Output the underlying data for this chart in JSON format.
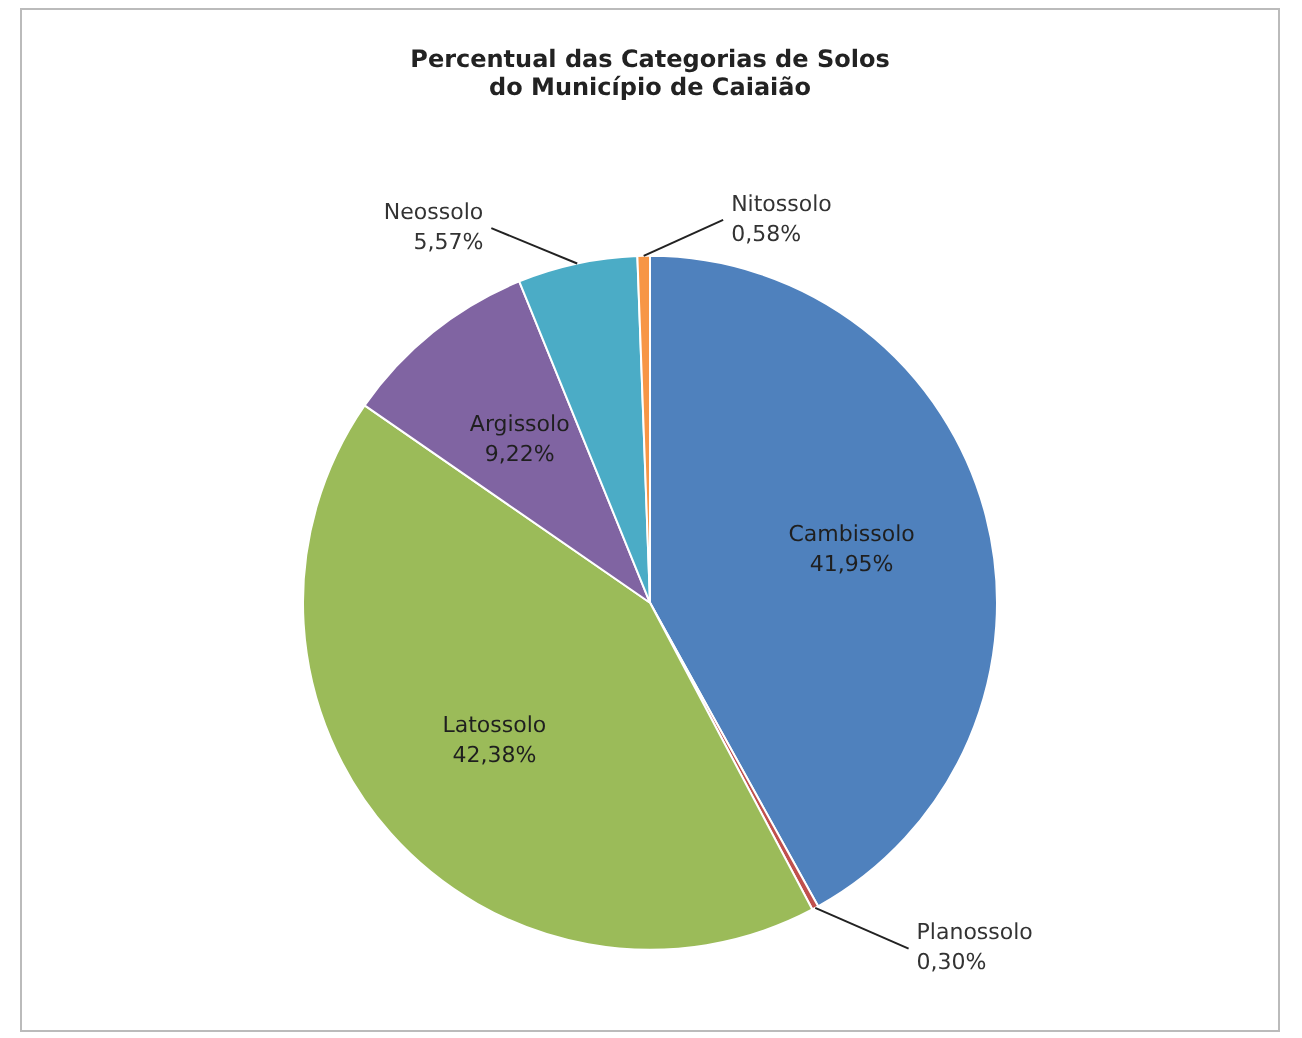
{
  "chart_data": {
    "type": "pie",
    "title": "Percentual das Categorias de Solos\ndo Município de Caiaião",
    "categories": [
      "Cambissolo",
      "Planossolo",
      "Latossolo",
      "Argissolo",
      "Neossolo",
      "Nitossolo"
    ],
    "values": [
      41.95,
      0.3,
      42.38,
      9.22,
      5.57,
      0.58
    ],
    "value_labels": [
      "41,95%",
      "0,30%",
      "42,38%",
      "9,22%",
      "5,57%",
      "0,58%"
    ],
    "colors": [
      "#4f81bd",
      "#c0504d",
      "#9bbb59",
      "#8064a2",
      "#4bacc6",
      "#f79646"
    ],
    "legend": false
  }
}
